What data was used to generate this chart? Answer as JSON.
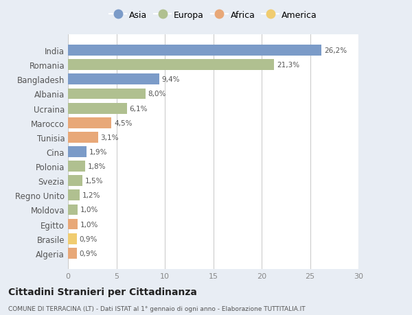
{
  "countries": [
    "India",
    "Romania",
    "Bangladesh",
    "Albania",
    "Ucraina",
    "Marocco",
    "Tunisia",
    "Cina",
    "Polonia",
    "Svezia",
    "Regno Unito",
    "Moldova",
    "Egitto",
    "Brasile",
    "Algeria"
  ],
  "values": [
    26.2,
    21.3,
    9.4,
    8.0,
    6.1,
    4.5,
    3.1,
    1.9,
    1.8,
    1.5,
    1.2,
    1.0,
    1.0,
    0.9,
    0.9
  ],
  "labels": [
    "26,2%",
    "21,3%",
    "9,4%",
    "8,0%",
    "6,1%",
    "4,5%",
    "3,1%",
    "1,9%",
    "1,8%",
    "1,5%",
    "1,2%",
    "1,0%",
    "1,0%",
    "0,9%",
    "0,9%"
  ],
  "continents": [
    "Asia",
    "Europa",
    "Asia",
    "Europa",
    "Europa",
    "Africa",
    "Africa",
    "Asia",
    "Europa",
    "Europa",
    "Europa",
    "Europa",
    "Africa",
    "America",
    "Africa"
  ],
  "colors": {
    "Asia": "#7b9bc8",
    "Europa": "#b0c090",
    "Africa": "#e8a878",
    "America": "#f0cc70"
  },
  "legend_order": [
    "Asia",
    "Europa",
    "Africa",
    "America"
  ],
  "xlim": [
    0,
    30
  ],
  "xticks": [
    0,
    5,
    10,
    15,
    20,
    25,
    30
  ],
  "title": "Cittadini Stranieri per Cittadinanza",
  "subtitle": "COMUNE DI TERRACINA (LT) - Dati ISTAT al 1° gennaio di ogni anno - Elaborazione TUTTITALIA.IT",
  "background_color": "#e8edf4",
  "plot_bg_color": "#ffffff",
  "grid_color": "#cccccc",
  "label_color": "#555555",
  "tick_color": "#888888"
}
